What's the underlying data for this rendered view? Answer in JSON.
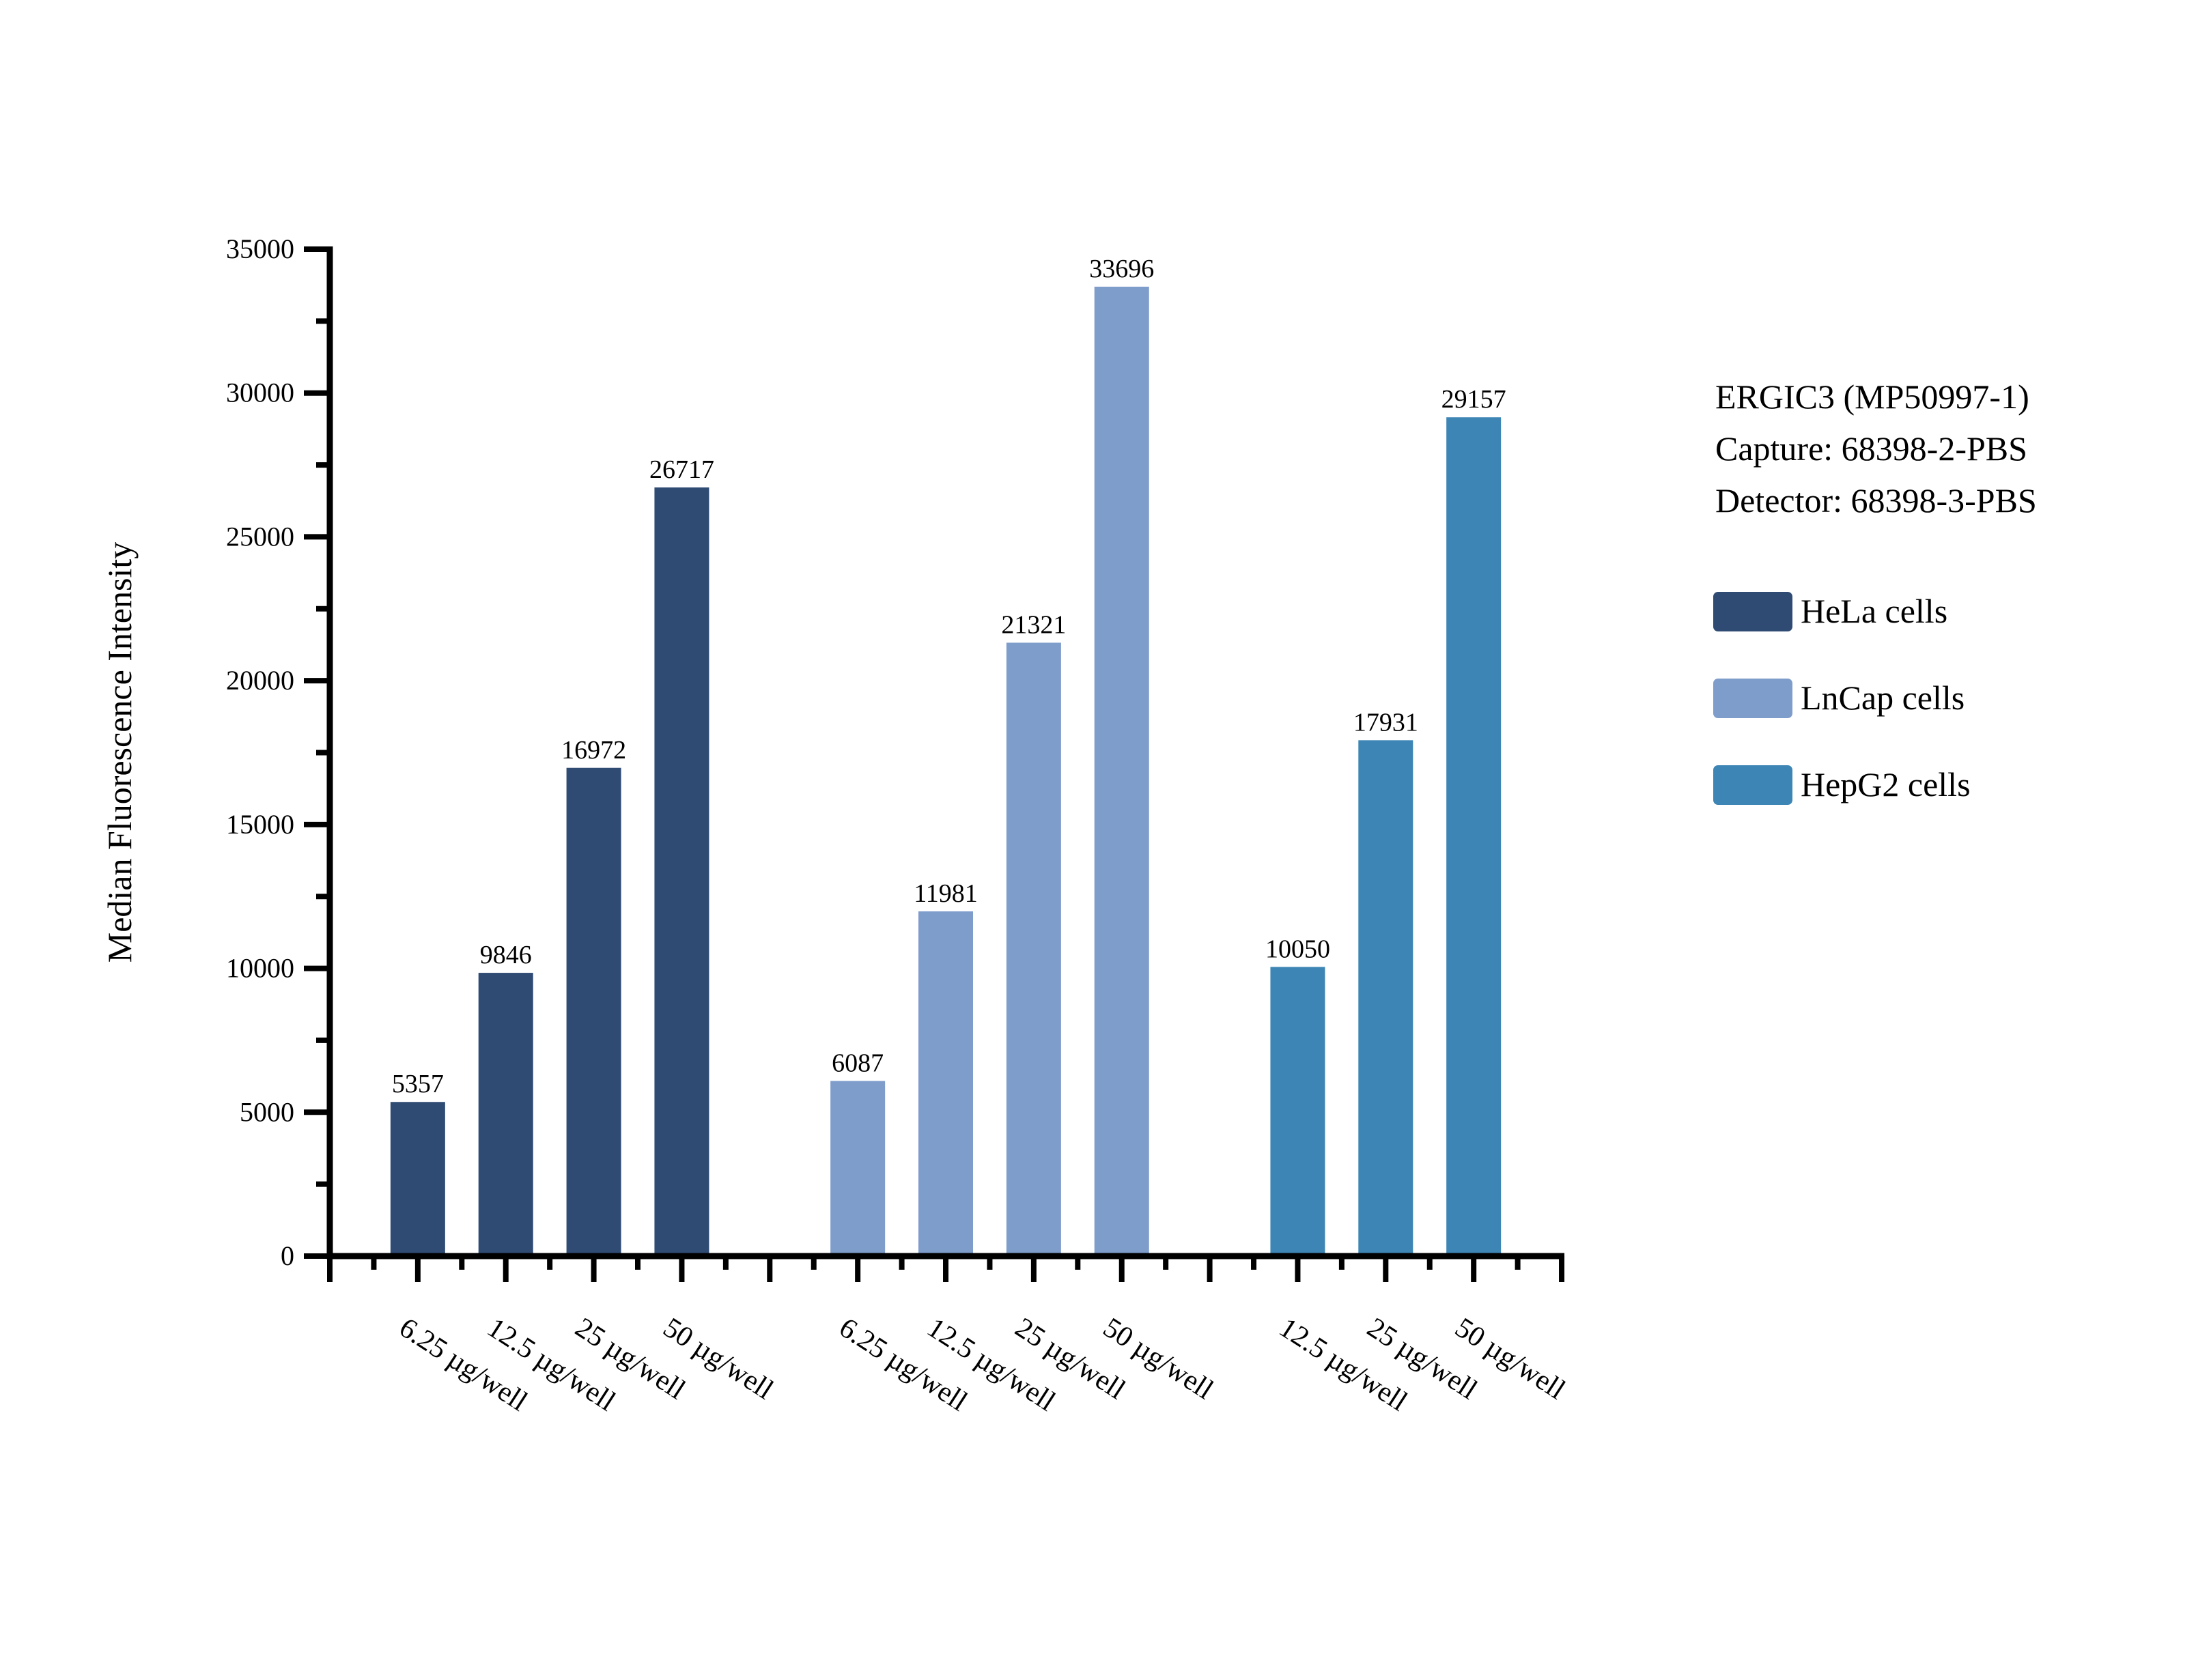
{
  "chart_data": {
    "type": "bar",
    "title": "",
    "xlabel": "",
    "ylabel": "Median Fluorescence Intensity",
    "ylim": [
      0,
      35000
    ],
    "ytick_step": 5000,
    "ytick_minor_step": 2500,
    "ytick_labels": [
      "0",
      "5000",
      "10000",
      "15000",
      "20000",
      "25000",
      "30000",
      "35000"
    ],
    "grid": false,
    "legend_position": "right",
    "bar_value_labels_shown": true,
    "annotation": [
      "ERGIC3 (MP50997-1)",
      "Capture: 68398-2-PBS",
      "Detector: 68398-3-PBS"
    ],
    "series": [
      {
        "name": "HeLa cells",
        "color": "#2F4B74",
        "categories": [
          "6.25 µg/well",
          "12.5 µg/well",
          "25 µg/well",
          "50 µg/well"
        ],
        "values": [
          5357,
          9846,
          16972,
          26717
        ]
      },
      {
        "name": "LnCap cells",
        "color": "#7E9DCB",
        "categories": [
          "6.25 µg/well",
          "12.5 µg/well",
          "25 µg/well",
          "50 µg/well"
        ],
        "values": [
          6087,
          11981,
          21321,
          33696
        ]
      },
      {
        "name": "HepG2 cells",
        "color": "#3D85B5",
        "categories": [
          "12.5 µg/well",
          "25 µg/well",
          "50 µg/well"
        ],
        "values": [
          10050,
          17931,
          29157
        ]
      }
    ]
  }
}
